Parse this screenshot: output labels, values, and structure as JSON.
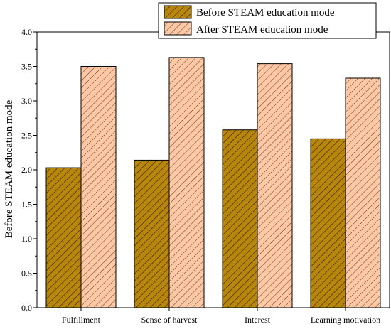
{
  "chart_data": {
    "type": "bar",
    "categories": [
      "Fulfillment",
      "Sense of harvest",
      "Interest",
      "Learning motivation"
    ],
    "series": [
      {
        "name": "Before STEAM education mode",
        "values": [
          2.03,
          2.14,
          2.58,
          2.45
        ],
        "fill": "#b8860b",
        "hatch": "#3a2a00"
      },
      {
        "name": "After STEAM education mode",
        "values": [
          3.5,
          3.63,
          3.54,
          3.33
        ],
        "fill": "#ffc8a4",
        "hatch": "#5a3a2a"
      }
    ],
    "xlabel": "",
    "ylabel": "Before STEAM education mode",
    "ylim": [
      0,
      4.0
    ],
    "yticks": [
      "0.0",
      "0.5",
      "1.0",
      "1.5",
      "2.0",
      "2.5",
      "3.0",
      "3.5",
      "4.0"
    ],
    "legend_position": "top-right",
    "grid": false
  }
}
